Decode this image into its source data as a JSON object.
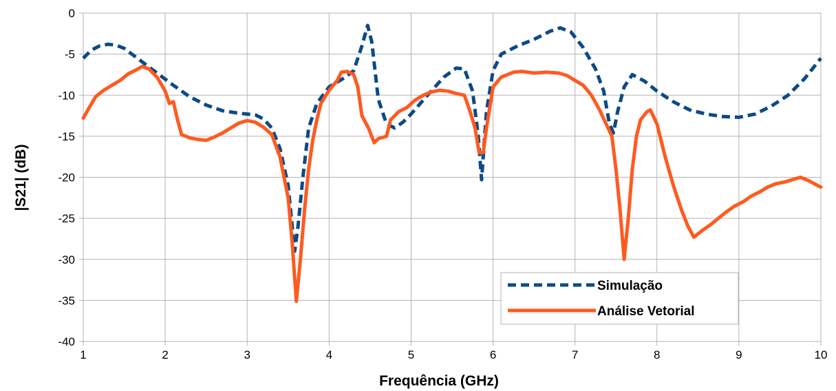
{
  "chart_data": {
    "type": "line",
    "title": "",
    "xlabel": "Frequência (GHz)",
    "ylabel": "|S21| (dB)",
    "xlim": [
      1,
      10
    ],
    "ylim": [
      -40,
      0
    ],
    "x_ticks": [
      "1",
      "2",
      "3",
      "4",
      "5",
      "6",
      "7",
      "8",
      "9",
      "10"
    ],
    "y_ticks": [
      "0",
      "-5",
      "-10",
      "-15",
      "-20",
      "-25",
      "-30",
      "-35",
      "-40"
    ],
    "grid": true,
    "legend_position": "bottom-right",
    "series": [
      {
        "name": "Simulação",
        "color": "#0d4a86",
        "style": "dashed",
        "points": [
          [
            1.0,
            -5.5
          ],
          [
            1.1,
            -4.5
          ],
          [
            1.2,
            -4.0
          ],
          [
            1.3,
            -3.8
          ],
          [
            1.4,
            -3.9
          ],
          [
            1.5,
            -4.3
          ],
          [
            1.7,
            -5.8
          ],
          [
            1.9,
            -7.3
          ],
          [
            2.1,
            -8.8
          ],
          [
            2.3,
            -10.2
          ],
          [
            2.5,
            -11.2
          ],
          [
            2.7,
            -11.9
          ],
          [
            2.9,
            -12.2
          ],
          [
            3.1,
            -12.4
          ],
          [
            3.2,
            -12.9
          ],
          [
            3.3,
            -14.0
          ],
          [
            3.4,
            -16.5
          ],
          [
            3.5,
            -21.0
          ],
          [
            3.55,
            -26.0
          ],
          [
            3.58,
            -29.0
          ],
          [
            3.62,
            -26.0
          ],
          [
            3.68,
            -20.0
          ],
          [
            3.75,
            -14.0
          ],
          [
            3.85,
            -11.0
          ],
          [
            4.0,
            -9.0
          ],
          [
            4.2,
            -7.8
          ],
          [
            4.3,
            -7.0
          ],
          [
            4.4,
            -4.0
          ],
          [
            4.47,
            -1.5
          ],
          [
            4.52,
            -3.5
          ],
          [
            4.6,
            -10.5
          ],
          [
            4.7,
            -13.5
          ],
          [
            4.8,
            -14.0
          ],
          [
            4.9,
            -13.3
          ],
          [
            5.0,
            -12.3
          ],
          [
            5.2,
            -10.0
          ],
          [
            5.4,
            -7.8
          ],
          [
            5.55,
            -6.7
          ],
          [
            5.65,
            -6.8
          ],
          [
            5.75,
            -9.5
          ],
          [
            5.82,
            -15.0
          ],
          [
            5.86,
            -20.3
          ],
          [
            5.92,
            -12.0
          ],
          [
            6.0,
            -7.0
          ],
          [
            6.1,
            -5.0
          ],
          [
            6.3,
            -4.0
          ],
          [
            6.5,
            -3.2
          ],
          [
            6.7,
            -2.2
          ],
          [
            6.82,
            -1.8
          ],
          [
            6.95,
            -2.3
          ],
          [
            7.1,
            -4.2
          ],
          [
            7.25,
            -6.8
          ],
          [
            7.35,
            -9.5
          ],
          [
            7.42,
            -13.5
          ],
          [
            7.47,
            -14.6
          ],
          [
            7.52,
            -12.0
          ],
          [
            7.6,
            -9.0
          ],
          [
            7.7,
            -7.5
          ],
          [
            7.85,
            -8.3
          ],
          [
            8.0,
            -9.5
          ],
          [
            8.2,
            -10.8
          ],
          [
            8.4,
            -11.8
          ],
          [
            8.6,
            -12.3
          ],
          [
            8.8,
            -12.6
          ],
          [
            9.0,
            -12.7
          ],
          [
            9.2,
            -12.3
          ],
          [
            9.4,
            -11.3
          ],
          [
            9.6,
            -10.0
          ],
          [
            9.8,
            -8.0
          ],
          [
            10.0,
            -5.5
          ]
        ]
      },
      {
        "name": "Análise Vetorial",
        "color": "#ff5a1f",
        "style": "solid",
        "points": [
          [
            1.0,
            -12.8
          ],
          [
            1.08,
            -11.4
          ],
          [
            1.15,
            -10.2
          ],
          [
            1.25,
            -9.4
          ],
          [
            1.35,
            -8.8
          ],
          [
            1.45,
            -8.2
          ],
          [
            1.55,
            -7.4
          ],
          [
            1.65,
            -6.9
          ],
          [
            1.72,
            -6.5
          ],
          [
            1.8,
            -6.8
          ],
          [
            1.9,
            -7.8
          ],
          [
            2.0,
            -9.5
          ],
          [
            2.05,
            -11.0
          ],
          [
            2.1,
            -10.8
          ],
          [
            2.15,
            -13.0
          ],
          [
            2.2,
            -14.8
          ],
          [
            2.3,
            -15.2
          ],
          [
            2.4,
            -15.4
          ],
          [
            2.5,
            -15.5
          ],
          [
            2.6,
            -15.1
          ],
          [
            2.7,
            -14.6
          ],
          [
            2.8,
            -14.0
          ],
          [
            2.9,
            -13.4
          ],
          [
            3.0,
            -13.1
          ],
          [
            3.1,
            -13.3
          ],
          [
            3.2,
            -13.9
          ],
          [
            3.3,
            -14.8
          ],
          [
            3.4,
            -17.5
          ],
          [
            3.45,
            -20.0
          ],
          [
            3.5,
            -22.5
          ],
          [
            3.55,
            -28.0
          ],
          [
            3.6,
            -35.1
          ],
          [
            3.65,
            -30.0
          ],
          [
            3.7,
            -24.0
          ],
          [
            3.75,
            -19.0
          ],
          [
            3.8,
            -15.5
          ],
          [
            3.85,
            -13.0
          ],
          [
            3.9,
            -11.0
          ],
          [
            4.0,
            -9.4
          ],
          [
            4.1,
            -8.2
          ],
          [
            4.15,
            -7.2
          ],
          [
            4.22,
            -7.1
          ],
          [
            4.3,
            -7.5
          ],
          [
            4.35,
            -9.0
          ],
          [
            4.4,
            -12.5
          ],
          [
            4.48,
            -14.0
          ],
          [
            4.55,
            -15.8
          ],
          [
            4.6,
            -15.3
          ],
          [
            4.7,
            -15.0
          ],
          [
            4.75,
            -13.0
          ],
          [
            4.85,
            -12.0
          ],
          [
            4.95,
            -11.5
          ],
          [
            5.05,
            -10.6
          ],
          [
            5.15,
            -10.0
          ],
          [
            5.25,
            -9.6
          ],
          [
            5.35,
            -9.4
          ],
          [
            5.45,
            -9.5
          ],
          [
            5.55,
            -9.8
          ],
          [
            5.65,
            -10.0
          ],
          [
            5.72,
            -12.0
          ],
          [
            5.78,
            -14.0
          ],
          [
            5.83,
            -17.0
          ],
          [
            5.88,
            -17.0
          ],
          [
            5.92,
            -14.0
          ],
          [
            5.96,
            -11.5
          ],
          [
            6.0,
            -9.0
          ],
          [
            6.1,
            -7.8
          ],
          [
            6.25,
            -7.2
          ],
          [
            6.35,
            -7.1
          ],
          [
            6.5,
            -7.3
          ],
          [
            6.65,
            -7.2
          ],
          [
            6.8,
            -7.3
          ],
          [
            6.9,
            -7.6
          ],
          [
            7.0,
            -8.2
          ],
          [
            7.1,
            -8.8
          ],
          [
            7.2,
            -10.0
          ],
          [
            7.3,
            -11.8
          ],
          [
            7.38,
            -13.5
          ],
          [
            7.45,
            -15.0
          ],
          [
            7.5,
            -19.0
          ],
          [
            7.55,
            -24.0
          ],
          [
            7.6,
            -30.0
          ],
          [
            7.65,
            -25.0
          ],
          [
            7.7,
            -19.0
          ],
          [
            7.75,
            -15.0
          ],
          [
            7.8,
            -13.0
          ],
          [
            7.88,
            -12.0
          ],
          [
            7.92,
            -11.8
          ],
          [
            8.0,
            -13.5
          ],
          [
            8.1,
            -17.5
          ],
          [
            8.2,
            -21.0
          ],
          [
            8.3,
            -24.0
          ],
          [
            8.38,
            -26.0
          ],
          [
            8.45,
            -27.3
          ],
          [
            8.55,
            -26.5
          ],
          [
            8.65,
            -25.8
          ],
          [
            8.75,
            -25.0
          ],
          [
            8.85,
            -24.2
          ],
          [
            8.95,
            -23.5
          ],
          [
            9.05,
            -23.0
          ],
          [
            9.15,
            -22.3
          ],
          [
            9.25,
            -21.8
          ],
          [
            9.35,
            -21.2
          ],
          [
            9.45,
            -20.8
          ],
          [
            9.55,
            -20.6
          ],
          [
            9.65,
            -20.3
          ],
          [
            9.75,
            -20.0
          ],
          [
            9.85,
            -20.4
          ],
          [
            9.92,
            -20.8
          ],
          [
            10.0,
            -21.2
          ]
        ]
      }
    ]
  }
}
